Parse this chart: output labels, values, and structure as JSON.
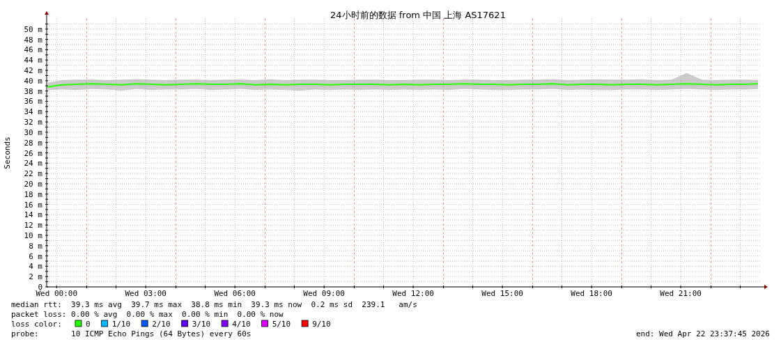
{
  "chart_data": {
    "type": "line",
    "title": "24小时前的数据 from 中国 上海 AS17621",
    "ylabel": "Seconds",
    "legend_title": "loss color:",
    "legend": "bottom",
    "grid": true,
    "marker": "none",
    "line_style": "solid",
    "xlim": [
      "2026-04-21T23:40",
      "2026-04-22T23:43"
    ],
    "ylim": [
      0,
      52
    ],
    "xticks": [
      {
        "value": "2026-04-22T00:00",
        "label": "Wed 00:00"
      },
      {
        "value": "2026-04-22T02:00",
        "label": null
      },
      {
        "value": "2026-04-22T03:00",
        "label": "Wed 03:00"
      },
      {
        "value": "2026-04-22T05:00",
        "label": null
      },
      {
        "value": "2026-04-22T06:00",
        "label": "Wed 06:00"
      },
      {
        "value": "2026-04-22T08:00",
        "label": null
      },
      {
        "value": "2026-04-22T09:00",
        "label": "Wed 09:00"
      },
      {
        "value": "2026-04-22T11:00",
        "label": null
      },
      {
        "value": "2026-04-22T12:00",
        "label": "Wed 12:00"
      },
      {
        "value": "2026-04-22T14:00",
        "label": null
      },
      {
        "value": "2026-04-22T15:00",
        "label": "Wed 15:00"
      },
      {
        "value": "2026-04-22T17:00",
        "label": null
      },
      {
        "value": "2026-04-22T18:00",
        "label": "Wed 18:00"
      },
      {
        "value": "2026-04-22T20:00",
        "label": null
      },
      {
        "value": "2026-04-22T21:00",
        "label": "Wed 21:00"
      },
      {
        "value": "2026-04-22T23:00",
        "label": null
      }
    ],
    "yticks": [
      {
        "value": 0,
        "label": "0"
      },
      {
        "value": 1,
        "label": null
      },
      {
        "value": 2,
        "label": "2 m"
      },
      {
        "value": 3,
        "label": null
      },
      {
        "value": 4,
        "label": "4 m"
      },
      {
        "value": 5,
        "label": null
      },
      {
        "value": 6,
        "label": "6 m"
      },
      {
        "value": 7,
        "label": null
      },
      {
        "value": 8,
        "label": "8 m"
      },
      {
        "value": 9,
        "label": null
      },
      {
        "value": 10,
        "label": "10 m"
      },
      {
        "value": 11,
        "label": null
      },
      {
        "value": 12,
        "label": "12 m"
      },
      {
        "value": 13,
        "label": null
      },
      {
        "value": 14,
        "label": "14 m"
      },
      {
        "value": 15,
        "label": null
      },
      {
        "value": 16,
        "label": "16 m"
      },
      {
        "value": 17,
        "label": null
      },
      {
        "value": 18,
        "label": "18 m"
      },
      {
        "value": 19,
        "label": null
      },
      {
        "value": 20,
        "label": "20 m"
      },
      {
        "value": 21,
        "label": null
      },
      {
        "value": 22,
        "label": "22 m"
      },
      {
        "value": 23,
        "label": null
      },
      {
        "value": 24,
        "label": "24 m"
      },
      {
        "value": 25,
        "label": null
      },
      {
        "value": 26,
        "label": "26 m"
      },
      {
        "value": 27,
        "label": null
      },
      {
        "value": 28,
        "label": "28 m"
      },
      {
        "value": 29,
        "label": null
      },
      {
        "value": 30,
        "label": "30 m"
      },
      {
        "value": 31,
        "label": null
      },
      {
        "value": 32,
        "label": "32 m"
      },
      {
        "value": 33,
        "label": null
      },
      {
        "value": 34,
        "label": "34 m"
      },
      {
        "value": 35,
        "label": null
      },
      {
        "value": 36,
        "label": "36 m"
      },
      {
        "value": 37,
        "label": null
      },
      {
        "value": 38,
        "label": "38 m"
      },
      {
        "value": 39,
        "label": null
      },
      {
        "value": 40,
        "label": "40 m"
      },
      {
        "value": 41,
        "label": null
      },
      {
        "value": 42,
        "label": "42 m"
      },
      {
        "value": 43,
        "label": null
      },
      {
        "value": 44,
        "label": "44 m"
      },
      {
        "value": 45,
        "label": null
      },
      {
        "value": 46,
        "label": "46 m"
      },
      {
        "value": 47,
        "label": null
      },
      {
        "value": 48,
        "label": "48 m"
      },
      {
        "value": 49,
        "label": null
      },
      {
        "value": 50,
        "label": "50 m"
      },
      {
        "value": 51,
        "label": null
      }
    ],
    "ref_lines": [
      {
        "axis": "x",
        "value": "2026-04-22T01:00",
        "label": null,
        "color": "#ff9999",
        "line_style": "dashed"
      },
      {
        "axis": "x",
        "value": "2026-04-22T04:00",
        "label": null,
        "color": "#ff9999",
        "line_style": "dashed"
      },
      {
        "axis": "x",
        "value": "2026-04-22T07:00",
        "label": null,
        "color": "#ff9999",
        "line_style": "dashed"
      },
      {
        "axis": "x",
        "value": "2026-04-22T10:00",
        "label": null,
        "color": "#ff9999",
        "line_style": "dashed"
      },
      {
        "axis": "x",
        "value": "2026-04-22T13:00",
        "label": null,
        "color": "#ff9999",
        "line_style": "dashed"
      },
      {
        "axis": "x",
        "value": "2026-04-22T16:00",
        "label": null,
        "color": "#ff9999",
        "line_style": "dashed"
      },
      {
        "axis": "x",
        "value": "2026-04-22T19:00",
        "label": null,
        "color": "#ff9999",
        "line_style": "dashed"
      },
      {
        "axis": "x",
        "value": "2026-04-22T22:00",
        "label": null,
        "color": "#ff9999",
        "line_style": "dashed"
      }
    ],
    "series": [
      {
        "name": "0",
        "color": "#26ff00",
        "x": [
          "2026-04-21T23:42",
          "2026-04-22T00:12",
          "2026-04-22T00:42",
          "2026-04-22T01:12",
          "2026-04-22T01:42",
          "2026-04-22T02:12",
          "2026-04-22T02:42",
          "2026-04-22T03:12",
          "2026-04-22T03:42",
          "2026-04-22T04:12",
          "2026-04-22T04:42",
          "2026-04-22T05:12",
          "2026-04-22T05:42",
          "2026-04-22T06:12",
          "2026-04-22T06:42",
          "2026-04-22T07:12",
          "2026-04-22T07:42",
          "2026-04-22T08:12",
          "2026-04-22T08:42",
          "2026-04-22T09:12",
          "2026-04-22T09:42",
          "2026-04-22T10:12",
          "2026-04-22T10:42",
          "2026-04-22T11:12",
          "2026-04-22T11:42",
          "2026-04-22T12:12",
          "2026-04-22T12:42",
          "2026-04-22T13:12",
          "2026-04-22T13:42",
          "2026-04-22T14:12",
          "2026-04-22T14:42",
          "2026-04-22T15:12",
          "2026-04-22T15:42",
          "2026-04-22T16:12",
          "2026-04-22T16:42",
          "2026-04-22T17:12",
          "2026-04-22T17:42",
          "2026-04-22T18:12",
          "2026-04-22T18:42",
          "2026-04-22T19:12",
          "2026-04-22T19:42",
          "2026-04-22T20:12",
          "2026-04-22T20:42",
          "2026-04-22T21:12",
          "2026-04-22T21:42",
          "2026-04-22T22:12",
          "2026-04-22T22:42",
          "2026-04-22T23:12",
          "2026-04-22T23:36"
        ],
        "values": [
          38.8,
          39.2,
          39.3,
          39.4,
          39.3,
          39.2,
          39.4,
          39.3,
          39.2,
          39.3,
          39.4,
          39.3,
          39.3,
          39.4,
          39.2,
          39.3,
          39.2,
          39.3,
          39.3,
          39.2,
          39.3,
          39.3,
          39.3,
          39.2,
          39.3,
          39.2,
          39.3,
          39.3,
          39.4,
          39.3,
          39.3,
          39.2,
          39.3,
          39.3,
          39.4,
          39.2,
          39.3,
          39.3,
          39.2,
          39.3,
          39.3,
          39.2,
          39.3,
          39.4,
          39.3,
          39.2,
          39.3,
          39.3,
          39.4
        ],
        "lower": [
          38.2,
          38.3,
          38.2,
          38.4,
          38.3,
          38.1,
          38.4,
          38.2,
          38.3,
          38.3,
          38.4,
          38.2,
          38.3,
          38.4,
          38.2,
          38.3,
          38.2,
          38.1,
          38.3,
          38.2,
          38.3,
          38.2,
          38.3,
          38.2,
          38.3,
          38.2,
          38.3,
          38.2,
          38.4,
          38.3,
          38.2,
          38.2,
          38.3,
          38.3,
          38.4,
          38.2,
          38.3,
          38.2,
          38.2,
          38.3,
          38.3,
          38.2,
          38.3,
          38.4,
          38.3,
          38.2,
          38.3,
          38.3,
          38.4
        ],
        "upper": [
          39.6,
          40.1,
          40.2,
          40.2,
          40.1,
          40.2,
          40.3,
          40.2,
          40.1,
          40.2,
          40.2,
          40.1,
          40.2,
          40.2,
          40.1,
          40.3,
          40.1,
          40.2,
          40.2,
          40.1,
          40.1,
          40.2,
          40.2,
          40.1,
          40.1,
          40.2,
          40.2,
          40.1,
          40.2,
          40.2,
          40.1,
          40.1,
          40.2,
          40.2,
          40.3,
          40.1,
          40.2,
          40.3,
          40.2,
          40.2,
          40.3,
          40.1,
          40.2,
          41.5,
          40.2,
          40.1,
          40.2,
          40.2,
          40.1
        ]
      },
      {
        "name": "1/10",
        "color": "#00b8ff",
        "values": [
          null
        ]
      },
      {
        "name": "2/10",
        "color": "#0059ff",
        "values": [
          null
        ]
      },
      {
        "name": "3/10",
        "color": "#5e00ff",
        "values": [
          null
        ]
      },
      {
        "name": "4/10",
        "color": "#7e00ff",
        "values": [
          null
        ]
      },
      {
        "name": "5/10",
        "color": "#dd00ff",
        "values": [
          null
        ]
      },
      {
        "name": "9/10",
        "color": "#ff0000",
        "values": [
          null
        ]
      }
    ],
    "annotations": [
      "median rtt:  39.3 ms avg  39.7 ms max  38.8 ms min  39.3 ms now  0.2 ms sd  239.1   am/s",
      "packet loss: 0.00 % avg  0.00 % max  0.00 % min  0.00 % now",
      "probe:       10 ICMP Echo Pings (64 Bytes) every 60s",
      "end: Wed Apr 22 23:37:45 2026"
    ]
  }
}
